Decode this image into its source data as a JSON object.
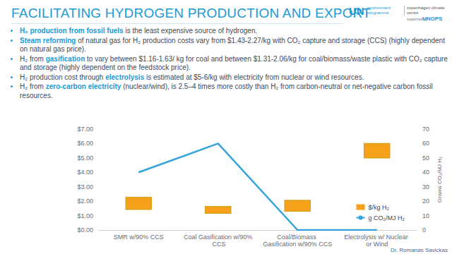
{
  "slide": {
    "title": "FACILITATING HYDROGEN PRODUCTION AND EXPORT",
    "logos": {
      "un": "UN",
      "unep": "environment programme",
      "ccc": "copenhagen climate centre",
      "supported": "supported by",
      "unops": "UNOPS"
    },
    "bullets": [
      [
        {
          "text": "H₂ production from fossil fuels",
          "em": true
        },
        {
          "text": " is the least expensive source of hydrogen."
        }
      ],
      [
        {
          "text": "Steam reforming",
          "em": true
        },
        {
          "text": " of natural gas for H₂ production costs vary from $1.43-2.27/kg with CO₂ capture and storage (CCS) (highly dependent on natural gas price)."
        }
      ],
      [
        {
          "text": "H₂ from "
        },
        {
          "text": "gasification",
          "em": true
        },
        {
          "text": " to vary between $1.16-1.63/ kg for coal and between $1.31-2.06/kg for coal/biomass/waste plastic with CO₂ capture and storage (highly dependent on the feedstock price)."
        }
      ],
      [
        {
          "text": "H₂ production cost through "
        },
        {
          "text": "electrolysis",
          "em": true
        },
        {
          "text": " is estimated at $5-6/kg with electricity from nuclear or wind resources."
        }
      ],
      [
        {
          "text": "H₂ from "
        },
        {
          "text": "zero-carbon electricity",
          "em": true
        },
        {
          "text": " (nuclear/wind), is 2.5–4 times more costly than H₂ from carbon-neutral or net-negative carbon fossil resources."
        }
      ]
    ],
    "footer": "Dr. Romanas Savickas"
  },
  "chart_data": {
    "type": "bar",
    "categories": [
      "SMR w/90% CCS",
      "Coal Gasification w/90% CCS",
      "Coal/Biomass Gasification w/90% CCS",
      "Electrolysis w/ Nuclear or Wind"
    ],
    "series": [
      {
        "name": "$/kg H₂",
        "type": "bar",
        "color": "#f7a11a",
        "low": [
          1.43,
          1.16,
          1.31,
          5
        ],
        "high": [
          2.27,
          1.63,
          2.06,
          6
        ]
      },
      {
        "name": "g CO₂/MJ H₂",
        "type": "line",
        "color": "#35a4dc",
        "axis": "y2",
        "values": [
          40,
          60,
          0,
          0
        ]
      }
    ],
    "ylim": [
      0,
      7
    ],
    "yticks": [
      {
        "value": 0,
        "label": "$0.00"
      },
      {
        "value": 1,
        "label": "$1.00"
      },
      {
        "value": 2,
        "label": "$2.00"
      },
      {
        "value": 3,
        "label": "$3.00"
      },
      {
        "value": 4,
        "label": "$4.00"
      },
      {
        "value": 5,
        "label": "$5.00"
      },
      {
        "value": 6,
        "label": "$6.00"
      },
      {
        "value": 7,
        "label": "$7.00"
      }
    ],
    "y2lim": [
      0,
      70
    ],
    "y2ticks": [
      0,
      10,
      20,
      30,
      40,
      50,
      60,
      70
    ],
    "y2label": "Grams CO₂/MJ H₂",
    "grid": false,
    "legend": "bottom-right"
  }
}
